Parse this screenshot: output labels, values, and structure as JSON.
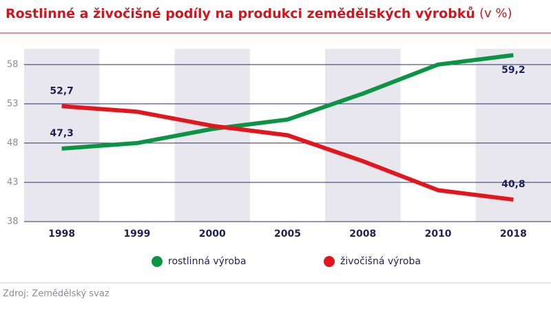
{
  "chart_data": {
    "type": "line",
    "title": "Rostlinné a živočišné podíly na produkci zemědělských výrobků",
    "subtitle": "(v %)",
    "categories": [
      "1998",
      "1999",
      "2000",
      "2005",
      "2008",
      "2010",
      "2018"
    ],
    "series": [
      {
        "name": "rostlinná výroba",
        "color": "#0b9444",
        "values": [
          47.3,
          48.0,
          49.8,
          51.0,
          54.3,
          58.0,
          59.2
        ],
        "value_labels": [
          "47,3",
          null,
          null,
          null,
          null,
          null,
          "59,2"
        ]
      },
      {
        "name": "živočišná výroba",
        "color": "#e3161d",
        "values": [
          52.7,
          52.0,
          50.2,
          49.0,
          45.7,
          42.0,
          40.8
        ],
        "value_labels": [
          "52,7",
          null,
          null,
          null,
          null,
          null,
          "40,8"
        ]
      }
    ],
    "ylim": [
      38,
      60
    ],
    "yticks": [
      38,
      43,
      48,
      53,
      58
    ],
    "grid": true,
    "legend": "bottom",
    "source": "Zdroj: Zemědělský svaz"
  }
}
